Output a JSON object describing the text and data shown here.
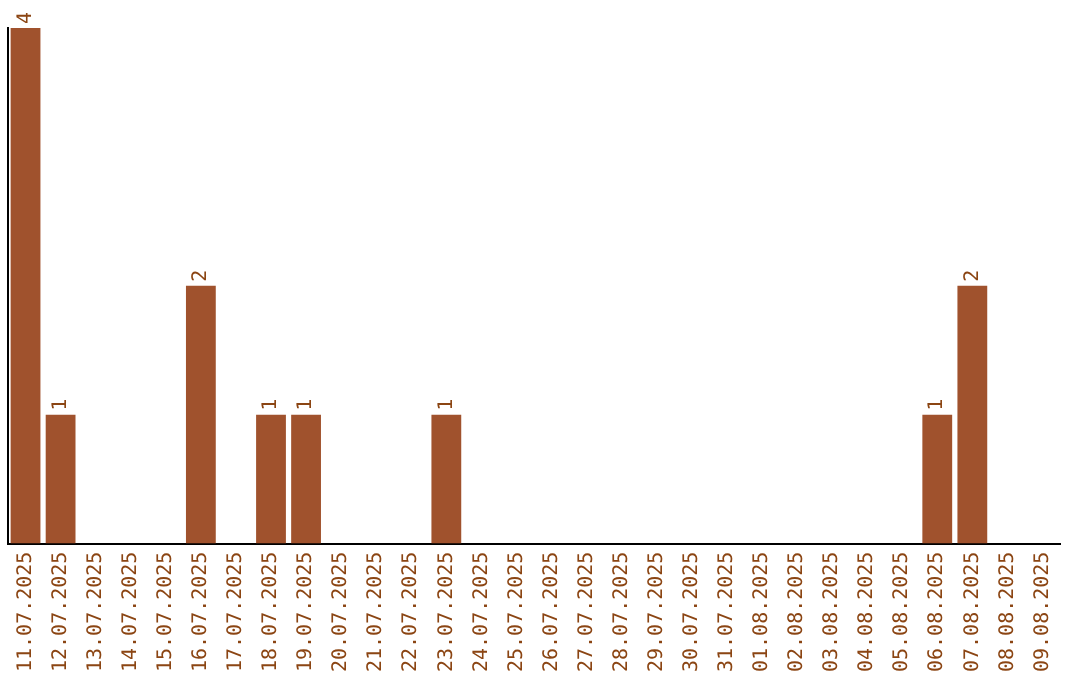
{
  "chart_data": {
    "type": "bar",
    "categories": [
      "11.07.2025",
      "12.07.2025",
      "13.07.2025",
      "14.07.2025",
      "15.07.2025",
      "16.07.2025",
      "17.07.2025",
      "18.07.2025",
      "19.07.2025",
      "20.07.2025",
      "21.07.2025",
      "22.07.2025",
      "23.07.2025",
      "24.07.2025",
      "25.07.2025",
      "26.07.2025",
      "27.07.2025",
      "28.07.2025",
      "29.07.2025",
      "30.07.2025",
      "31.07.2025",
      "01.08.2025",
      "02.08.2025",
      "03.08.2025",
      "04.08.2025",
      "05.08.2025",
      "06.08.2025",
      "07.08.2025",
      "08.08.2025",
      "09.08.2025"
    ],
    "values": [
      4,
      1,
      0,
      0,
      0,
      2,
      0,
      1,
      1,
      0,
      0,
      0,
      1,
      0,
      0,
      0,
      0,
      0,
      0,
      0,
      0,
      0,
      0,
      0,
      0,
      0,
      1,
      2,
      0,
      0
    ],
    "value_labels": [
      "4",
      "1",
      null,
      null,
      null,
      "2",
      null,
      "1",
      "1",
      null,
      null,
      null,
      "1",
      null,
      null,
      null,
      null,
      null,
      null,
      null,
      null,
      null,
      null,
      null,
      null,
      null,
      "1",
      "2",
      null,
      null
    ],
    "color": "#a0522d",
    "ylim": [
      0,
      4
    ],
    "tick_labels": "x",
    "grid": false,
    "legend": false
  }
}
